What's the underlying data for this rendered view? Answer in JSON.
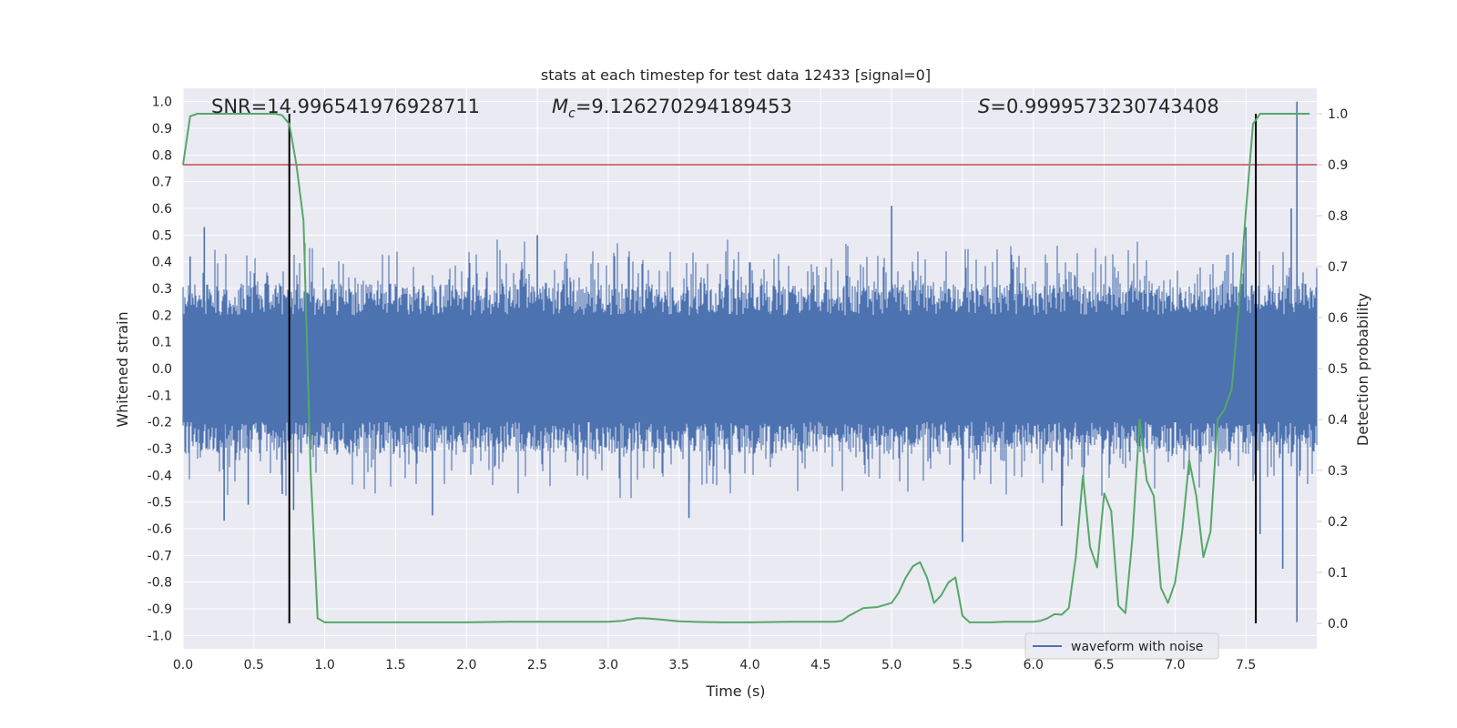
{
  "chart_data": {
    "type": "line",
    "title": "stats at each timestep for test data 12433 [signal=0]",
    "xlabel": "Time (s)",
    "ylabel_left": "Whitened strain",
    "ylabel_right": "Detection probability",
    "xlim": [
      0.0,
      8.0
    ],
    "ylim_left": [
      -1.05,
      1.05
    ],
    "ylim_right": [
      -0.05,
      1.05
    ],
    "x_ticks": [
      "0.0",
      "0.5",
      "1.0",
      "1.5",
      "2.0",
      "2.5",
      "3.0",
      "3.5",
      "4.0",
      "4.5",
      "5.0",
      "5.5",
      "6.0",
      "6.5",
      "7.0",
      "7.5"
    ],
    "y_left_ticks": [
      "1.0",
      "0.9",
      "0.8",
      "0.7",
      "0.6",
      "0.5",
      "0.4",
      "0.3",
      "0.2",
      "0.1",
      "0.0",
      "-0.1",
      "-0.2",
      "-0.3",
      "-0.4",
      "-0.5",
      "-0.6",
      "-0.7",
      "-0.8",
      "-0.9",
      "-1.0"
    ],
    "y_right_ticks": [
      "1.0",
      "0.9",
      "0.8",
      "0.7",
      "0.6",
      "0.5",
      "0.4",
      "0.3",
      "0.2",
      "0.1",
      "0.0"
    ],
    "grid": true,
    "legend_position": "lower-right",
    "legend_entries": [
      "waveform with noise"
    ],
    "annotations": {
      "snr": "SNR=14.996541976928711",
      "mc_symbol": "M",
      "mc_sub": "c",
      "mc_value": "=9.126270294189453",
      "s_symbol": "S",
      "s_value": "=0.9999573230743408"
    },
    "threshold": 0.9,
    "vertical_markers": [
      0.75,
      7.57
    ],
    "waveform": {
      "name": "waveform with noise",
      "color": "#4c72b0",
      "rms_band": 0.2,
      "spike_peaks": [
        {
          "x": 0.05,
          "y": 0.42
        },
        {
          "x": 0.15,
          "y": 0.53
        },
        {
          "x": 0.29,
          "y": -0.57
        },
        {
          "x": 0.46,
          "y": -0.51
        },
        {
          "x": 0.7,
          "y": -0.47
        },
        {
          "x": 0.78,
          "y": -0.53
        },
        {
          "x": 1.76,
          "y": -0.55
        },
        {
          "x": 2.5,
          "y": 0.5
        },
        {
          "x": 3.57,
          "y": -0.56
        },
        {
          "x": 5.0,
          "y": 0.61
        },
        {
          "x": 5.5,
          "y": -0.65
        },
        {
          "x": 6.2,
          "y": -0.59
        },
        {
          "x": 7.5,
          "y": 0.53
        },
        {
          "x": 7.6,
          "y": -0.62
        },
        {
          "x": 7.86,
          "y": 1.0
        },
        {
          "x": 7.86,
          "y": -0.95
        },
        {
          "x": 7.82,
          "y": 0.6
        },
        {
          "x": 7.76,
          "y": -0.75
        }
      ]
    },
    "probability_series": {
      "name": "detection probability",
      "color": "#55a868",
      "x": [
        0.0,
        0.05,
        0.1,
        0.15,
        0.2,
        0.3,
        0.4,
        0.5,
        0.6,
        0.65,
        0.7,
        0.75,
        0.8,
        0.85,
        0.9,
        0.95,
        1.0,
        1.1,
        1.3,
        1.5,
        1.8,
        2.0,
        2.3,
        2.5,
        2.8,
        3.0,
        3.1,
        3.2,
        3.25,
        3.35,
        3.5,
        3.6,
        3.8,
        4.0,
        4.3,
        4.6,
        4.65,
        4.7,
        4.8,
        4.9,
        5.0,
        5.05,
        5.1,
        5.15,
        5.2,
        5.25,
        5.3,
        5.35,
        5.4,
        5.45,
        5.5,
        5.55,
        5.6,
        5.65,
        5.7,
        5.8,
        5.9,
        6.0,
        6.05,
        6.1,
        6.15,
        6.2,
        6.25,
        6.3,
        6.35,
        6.4,
        6.45,
        6.5,
        6.55,
        6.6,
        6.65,
        6.7,
        6.75,
        6.8,
        6.85,
        6.9,
        6.95,
        7.0,
        7.05,
        7.1,
        7.15,
        7.2,
        7.25,
        7.3,
        7.35,
        7.4,
        7.45,
        7.5,
        7.55,
        7.6,
        7.65,
        7.7,
        7.75,
        7.8,
        7.85,
        7.95
      ],
      "y": [
        0.9,
        0.995,
        1.0,
        1.0,
        1.0,
        1.0,
        1.0,
        1.0,
        1.0,
        1.0,
        0.997,
        0.98,
        0.9,
        0.79,
        0.3,
        0.01,
        0.002,
        0.002,
        0.002,
        0.002,
        0.002,
        0.002,
        0.003,
        0.003,
        0.003,
        0.003,
        0.005,
        0.01,
        0.01,
        0.008,
        0.004,
        0.003,
        0.002,
        0.002,
        0.003,
        0.003,
        0.005,
        0.015,
        0.03,
        0.032,
        0.04,
        0.06,
        0.09,
        0.112,
        0.12,
        0.09,
        0.04,
        0.055,
        0.08,
        0.09,
        0.015,
        0.002,
        0.002,
        0.002,
        0.002,
        0.003,
        0.003,
        0.003,
        0.005,
        0.01,
        0.018,
        0.017,
        0.03,
        0.13,
        0.29,
        0.15,
        0.11,
        0.255,
        0.22,
        0.035,
        0.02,
        0.17,
        0.4,
        0.28,
        0.25,
        0.07,
        0.04,
        0.08,
        0.18,
        0.32,
        0.25,
        0.13,
        0.18,
        0.4,
        0.42,
        0.46,
        0.62,
        0.81,
        0.98,
        1.0,
        1.0,
        1.0,
        1.0,
        1.0,
        1.0,
        1.0
      ]
    },
    "colors": {
      "plot_bg": "#eaeaf2",
      "grid": "#ffffff",
      "threshold_line": "#c44e52",
      "marker_line": "#000000"
    }
  }
}
